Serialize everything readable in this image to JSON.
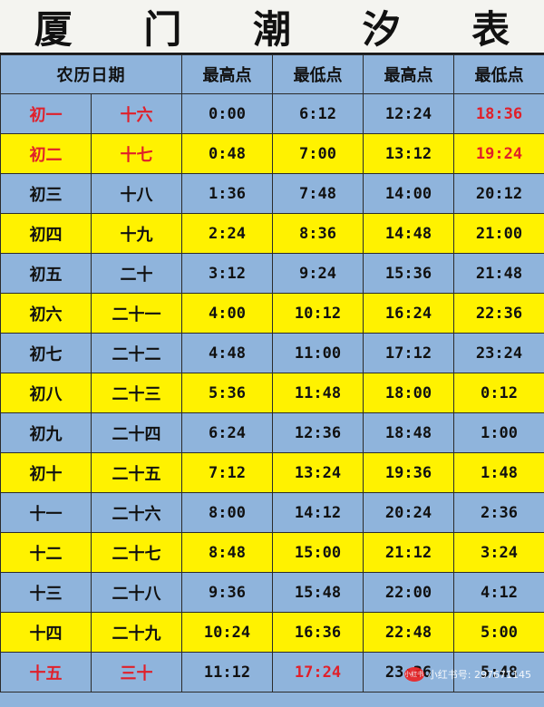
{
  "title": "厦 门 潮 汐 表",
  "headers": [
    "农历日期",
    "最高点",
    "最低点",
    "最高点",
    "最低点"
  ],
  "rows": [
    {
      "d1": "初一",
      "d2": "十六",
      "t": [
        "0:00",
        "6:12",
        "12:24",
        "18:36"
      ],
      "color": "blue",
      "red_dates": true,
      "red_cols": [
        3
      ]
    },
    {
      "d1": "初二",
      "d2": "十七",
      "t": [
        "0:48",
        "7:00",
        "13:12",
        "19:24"
      ],
      "color": "yellow",
      "red_dates": true,
      "red_cols": [
        3
      ]
    },
    {
      "d1": "初三",
      "d2": "十八",
      "t": [
        "1:36",
        "7:48",
        "14:00",
        "20:12"
      ],
      "color": "blue",
      "red_dates": false,
      "red_cols": []
    },
    {
      "d1": "初四",
      "d2": "十九",
      "t": [
        "2:24",
        "8:36",
        "14:48",
        "21:00"
      ],
      "color": "yellow",
      "red_dates": false,
      "red_cols": []
    },
    {
      "d1": "初五",
      "d2": "二十",
      "t": [
        "3:12",
        "9:24",
        "15:36",
        "21:48"
      ],
      "color": "blue",
      "red_dates": false,
      "red_cols": []
    },
    {
      "d1": "初六",
      "d2": "二十一",
      "t": [
        "4:00",
        "10:12",
        "16:24",
        "22:36"
      ],
      "color": "yellow",
      "red_dates": false,
      "red_cols": []
    },
    {
      "d1": "初七",
      "d2": "二十二",
      "t": [
        "4:48",
        "11:00",
        "17:12",
        "23:24"
      ],
      "color": "blue",
      "red_dates": false,
      "red_cols": []
    },
    {
      "d1": "初八",
      "d2": "二十三",
      "t": [
        "5:36",
        "11:48",
        "18:00",
        "0:12"
      ],
      "color": "yellow",
      "red_dates": false,
      "red_cols": []
    },
    {
      "d1": "初九",
      "d2": "二十四",
      "t": [
        "6:24",
        "12:36",
        "18:48",
        "1:00"
      ],
      "color": "blue",
      "red_dates": false,
      "red_cols": []
    },
    {
      "d1": "初十",
      "d2": "二十五",
      "t": [
        "7:12",
        "13:24",
        "19:36",
        "1:48"
      ],
      "color": "yellow",
      "red_dates": false,
      "red_cols": []
    },
    {
      "d1": "十一",
      "d2": "二十六",
      "t": [
        "8:00",
        "14:12",
        "20:24",
        "2:36"
      ],
      "color": "blue",
      "red_dates": false,
      "red_cols": []
    },
    {
      "d1": "十二",
      "d2": "二十七",
      "t": [
        "8:48",
        "15:00",
        "21:12",
        "3:24"
      ],
      "color": "yellow",
      "red_dates": false,
      "red_cols": []
    },
    {
      "d1": "十三",
      "d2": "二十八",
      "t": [
        "9:36",
        "15:48",
        "22:00",
        "4:12"
      ],
      "color": "blue",
      "red_dates": false,
      "red_cols": []
    },
    {
      "d1": "十四",
      "d2": "二十九",
      "t": [
        "10:24",
        "16:36",
        "22:48",
        "5:00"
      ],
      "color": "yellow",
      "red_dates": false,
      "red_cols": []
    },
    {
      "d1": "十五",
      "d2": "三十",
      "t": [
        "11:12",
        "17:24",
        "23:36",
        "5:48"
      ],
      "color": "blue",
      "red_dates": true,
      "red_cols": [
        1
      ]
    }
  ],
  "watermark": {
    "logo": "小红书",
    "text": "小红书号: 297671145"
  },
  "colors": {
    "blue": "#8fb4dc",
    "yellow": "#fff200",
    "red": "#e0202a"
  }
}
